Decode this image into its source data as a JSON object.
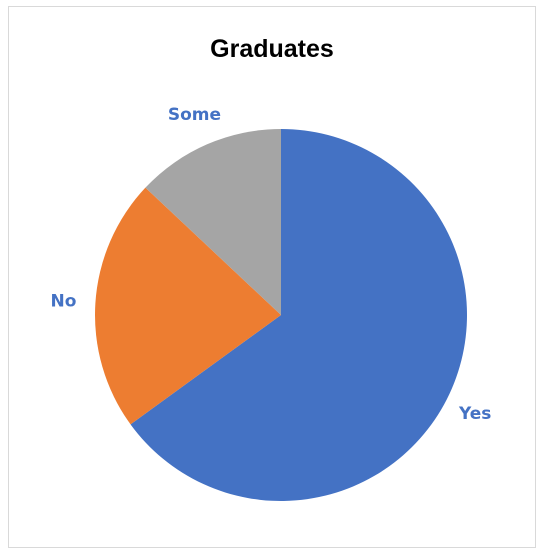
{
  "chart_data": {
    "type": "pie",
    "title": "Graduates",
    "start_angle_deg": 0,
    "direction": "clockwise",
    "slices": [
      {
        "label": "Yes",
        "value": 65,
        "color": "#4472C4",
        "label_color": "#4472C4"
      },
      {
        "label": "No",
        "value": 22,
        "color": "#ED7D31",
        "label_color": "#4472C4"
      },
      {
        "label": "Some",
        "value": 13,
        "color": "#A5A5A5",
        "label_color": "#4472C4"
      }
    ],
    "legend": "none",
    "data_labels": "category-name-outside"
  }
}
